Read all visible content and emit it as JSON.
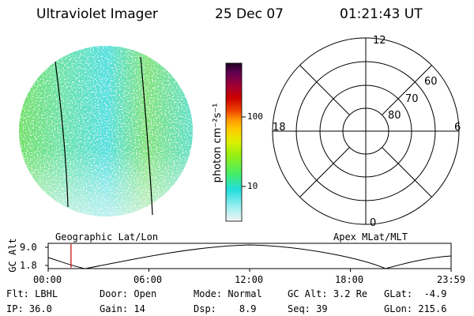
{
  "header": {
    "instrument": "Ultraviolet Imager",
    "date": "25 Dec 07",
    "time": "01:21:43 UT"
  },
  "colors": {
    "scale": [
      "#f0f0f0",
      "#9ef0f0",
      "#22dddd",
      "#55ee55",
      "#aaf000",
      "#f0f000",
      "#ffbb00",
      "#f07700",
      "#e00000",
      "#a00030",
      "#300030"
    ],
    "earth_base": "#5fe0c8"
  },
  "colorbar": {
    "label": "photon cm⁻²s⁻¹",
    "ticks": [
      {
        "value": "100"
      },
      {
        "value": "10"
      }
    ]
  },
  "polar": {
    "mlt_labels": {
      "top": "12",
      "left": "18",
      "right": "6",
      "bottom": "0"
    },
    "lat_labels": [
      "60",
      "70",
      "80"
    ]
  },
  "timeline": {
    "ylabel": "GC Alt",
    "yticks": [
      "9.0",
      "1.8"
    ],
    "left_label": "Geographic Lat/Lon",
    "right_label": "Apex MLat/MLT",
    "xticks": [
      "00:00",
      "06:00",
      "12:00",
      "18:00",
      "23:59"
    ],
    "marker_fraction": 0.0567
  },
  "status": {
    "row1": [
      {
        "label": "Flt:",
        "value": "LBHL"
      },
      {
        "label": "Door:",
        "value": "Open"
      },
      {
        "label": "Mode:",
        "value": "Normal"
      },
      {
        "label": "GC Alt:",
        "value": "3.2 Re"
      },
      {
        "label": "GLat:",
        "value": "-4.9"
      }
    ],
    "row2": [
      {
        "label": "IP:",
        "value": "36.0"
      },
      {
        "label": "Gain:",
        "value": "14"
      },
      {
        "label": "Dsp:",
        "value": "8.9"
      },
      {
        "label": "Seq:",
        "value": "39"
      },
      {
        "label": "GLon:",
        "value": "215.6"
      }
    ]
  }
}
